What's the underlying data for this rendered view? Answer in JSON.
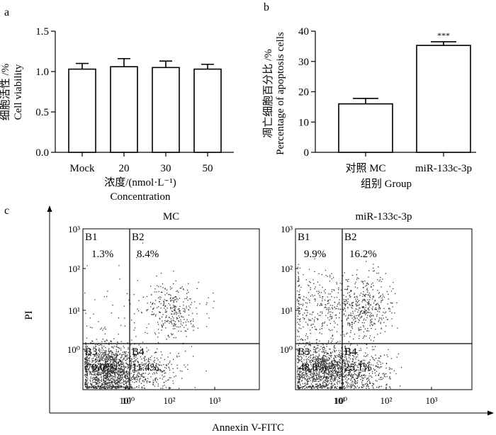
{
  "chart_data": [
    {
      "panel": "a",
      "type": "bar",
      "categories": [
        "Mock",
        "20",
        "30",
        "50"
      ],
      "values": [
        1.03,
        1.06,
        1.05,
        1.03
      ],
      "errors": [
        0.07,
        0.1,
        0.08,
        0.06
      ],
      "ylim": [
        0,
        1.5
      ],
      "yticks": [
        "0.0",
        "0.5",
        "1.0",
        "1.5"
      ],
      "ylabel_cn": "细胞活性 /%",
      "ylabel_en": "Cell viability",
      "xlabel_cn": "浓度/(nmol·L⁻¹)",
      "xlabel_en": "Concentration"
    },
    {
      "panel": "b",
      "type": "bar",
      "categories": [
        "对照 MC",
        "miR-133c-3p"
      ],
      "values": [
        16,
        35.3
      ],
      "errors": [
        1.8,
        1.2
      ],
      "significance": [
        "",
        "***"
      ],
      "ylim": [
        0,
        40
      ],
      "yticks": [
        "0",
        "10",
        "20",
        "30",
        "40"
      ],
      "ylabel_cn": "凋亡细胞百分比 /%",
      "ylabel_en": "Percentage of apoptosis cells",
      "xlabel": "组别 Group"
    },
    {
      "panel": "c",
      "type": "scatter",
      "ylabel": "PI",
      "xlabel": "Annexin V-FITC",
      "xscale": "log",
      "yscale": "log",
      "plots": [
        {
          "title": "MC",
          "quadrants": {
            "B1": "1.3%",
            "B2": "8.4%",
            "B3": "79.0%",
            "B4": "11.4%"
          }
        },
        {
          "title": "miR-133c-3p",
          "quadrants": {
            "B1": "9.9%",
            "B2": "16.2%",
            "B3": "48.8%",
            "B4": "25.1%"
          }
        }
      ],
      "quadrant_names": [
        "B1",
        "B2",
        "B3",
        "B4"
      ]
    }
  ],
  "panel_labels": [
    "a",
    "b",
    "c"
  ]
}
